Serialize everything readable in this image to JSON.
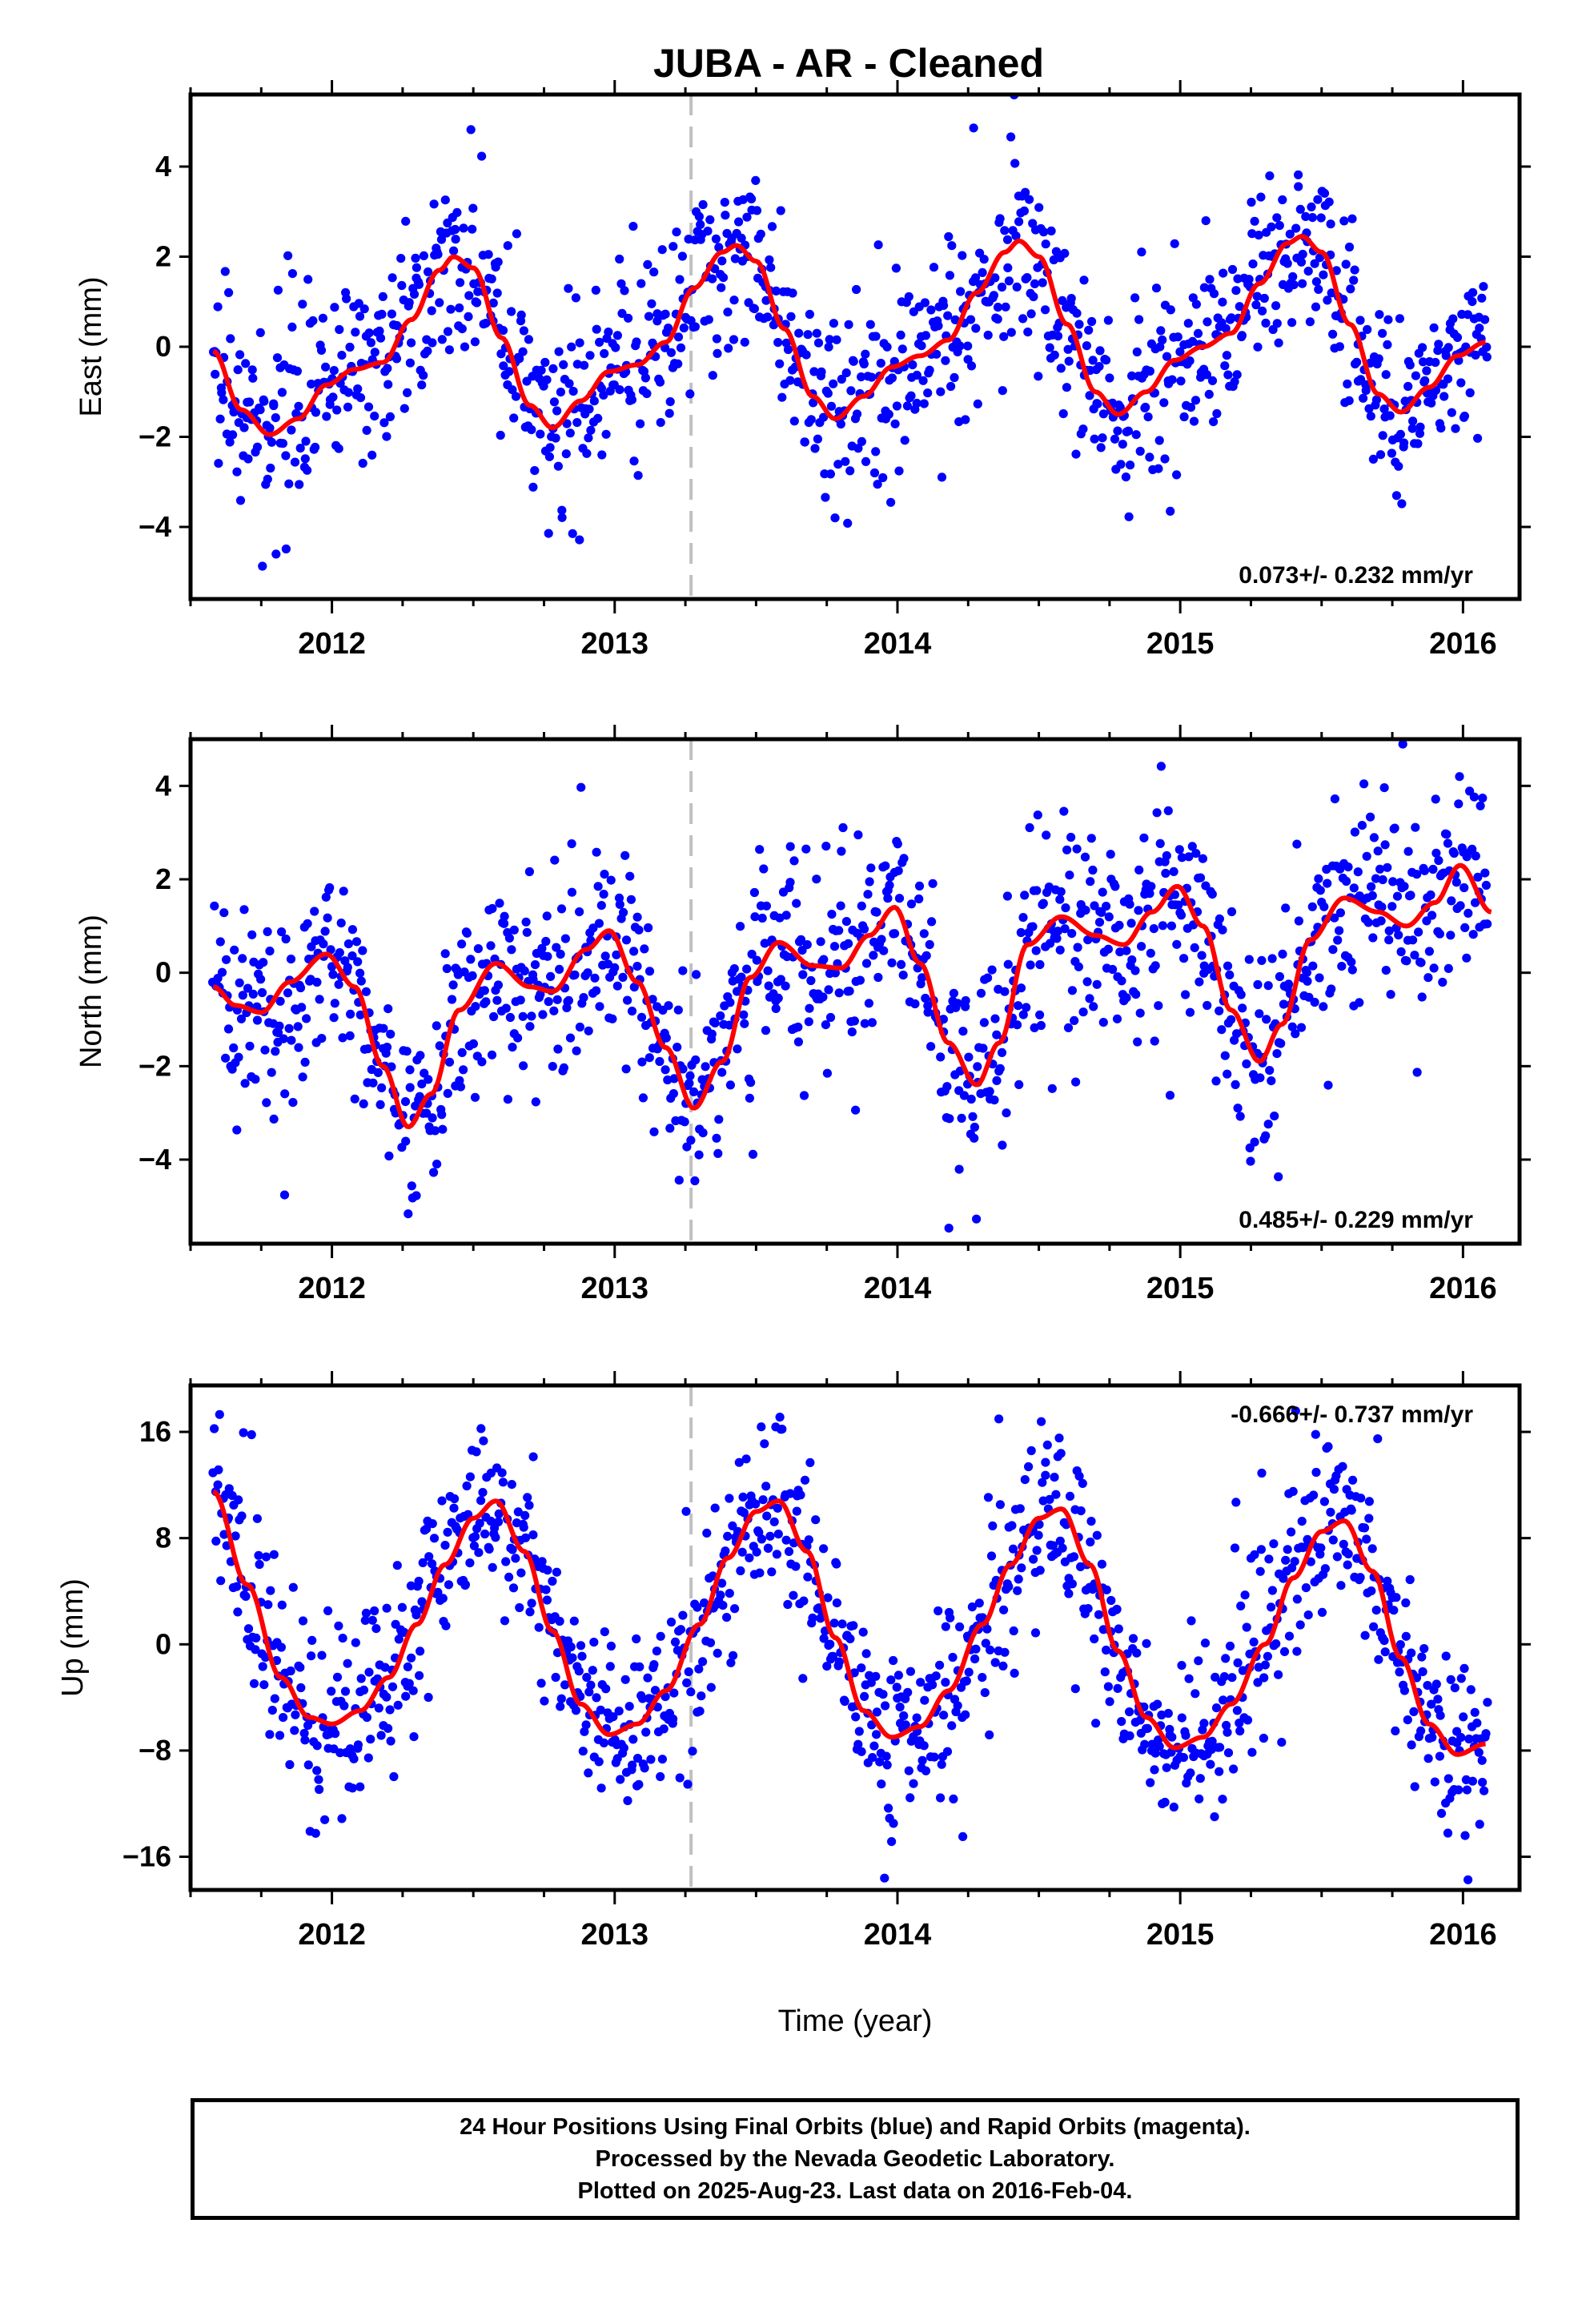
{
  "title": "JUBA  - AR - Cleaned",
  "xlabel": "Time (year)",
  "footer": {
    "line1": "24 Hour Positions Using Final Orbits (blue) and Rapid Orbits (magenta).",
    "line2": "Processed by the Nevada Geodetic Laboratory.",
    "line3": "Plotted on 2025-Aug-23. Last data on 2016-Feb-04."
  },
  "colors": {
    "points": "#0000ff",
    "model": "#ff0000",
    "marker_line": "#c0c0c0"
  },
  "chart_data": [
    {
      "type": "scatter",
      "ylabel": "East (mm)",
      "rate": "0.073+/- 0.232 mm/yr",
      "xlim": [
        2011.5,
        2016.2
      ],
      "ylim": [
        -5.6,
        5.6
      ],
      "yticks": [
        -4,
        -2,
        0,
        2,
        4
      ],
      "xticks": [
        2012,
        2013,
        2014,
        2015,
        2016
      ],
      "marker_x": 2013.27,
      "model": {
        "x": [
          2011.58,
          2011.68,
          2011.78,
          2011.88,
          2011.98,
          2012.08,
          2012.18,
          2012.28,
          2012.38,
          2012.43,
          2012.5,
          2012.6,
          2012.7,
          2012.78,
          2012.88,
          2012.98,
          2013.08,
          2013.18,
          2013.28,
          2013.38,
          2013.43,
          2013.5,
          2013.6,
          2013.7,
          2013.78,
          2013.88,
          2013.98,
          2014.08,
          2014.18,
          2014.28,
          2014.38,
          2014.43,
          2014.5,
          2014.6,
          2014.7,
          2014.78,
          2014.88,
          2014.98,
          2015.08,
          2015.18,
          2015.28,
          2015.38,
          2015.43,
          2015.5,
          2015.6,
          2015.7,
          2015.78,
          2015.88,
          2015.98,
          2016.08
        ],
        "y": [
          -0.1,
          -1.4,
          -1.95,
          -1.6,
          -0.85,
          -0.5,
          -0.35,
          0.6,
          1.7,
          2.0,
          1.75,
          0.2,
          -1.3,
          -1.8,
          -1.2,
          -0.55,
          -0.4,
          0.1,
          1.3,
          2.1,
          2.25,
          1.9,
          0.4,
          -1.1,
          -1.6,
          -1.1,
          -0.45,
          -0.2,
          0.15,
          1.2,
          2.1,
          2.35,
          2.0,
          0.5,
          -1.0,
          -1.5,
          -1.0,
          -0.3,
          0.0,
          0.3,
          1.4,
          2.3,
          2.45,
          2.1,
          0.5,
          -1.05,
          -1.45,
          -0.9,
          -0.2,
          0.1
        ]
      }
    },
    {
      "type": "scatter",
      "ylabel": "North (mm)",
      "rate": "0.485+/- 0.229 mm/yr",
      "xlim": [
        2011.5,
        2016.2
      ],
      "ylim": [
        -5.8,
        5.0
      ],
      "yticks": [
        -4,
        -2,
        0,
        2,
        4
      ],
      "xticks": [
        2012,
        2013,
        2014,
        2015,
        2016
      ],
      "marker_x": 2013.27,
      "model": {
        "x": [
          2011.58,
          2011.66,
          2011.75,
          2011.85,
          2011.98,
          2012.08,
          2012.18,
          2012.27,
          2012.35,
          2012.45,
          2012.58,
          2012.7,
          2012.78,
          2012.9,
          2012.98,
          2013.08,
          2013.18,
          2013.28,
          2013.38,
          2013.48,
          2013.58,
          2013.7,
          2013.8,
          2013.9,
          2013.99,
          2014.08,
          2014.18,
          2014.28,
          2014.36,
          2014.46,
          2014.58,
          2014.7,
          2014.8,
          2014.9,
          2014.99,
          2015.08,
          2015.18,
          2015.28,
          2015.36,
          2015.46,
          2015.58,
          2015.7,
          2015.8,
          2015.9,
          2015.99,
          2016.1
        ],
        "y": [
          -0.3,
          -0.7,
          -0.85,
          -0.2,
          0.4,
          -0.3,
          -2.0,
          -3.3,
          -2.6,
          -0.8,
          0.2,
          -0.3,
          -0.4,
          0.5,
          0.9,
          -0.2,
          -1.6,
          -2.9,
          -1.9,
          -0.1,
          0.65,
          0.15,
          0.1,
          0.8,
          1.4,
          0.2,
          -1.5,
          -2.4,
          -1.5,
          0.6,
          1.2,
          0.8,
          0.6,
          1.3,
          1.85,
          1.0,
          -0.8,
          -1.9,
          -1.1,
          0.7,
          1.6,
          1.3,
          1.0,
          1.5,
          2.3,
          1.3
        ]
      }
    },
    {
      "type": "scatter",
      "ylabel": "Up (mm)",
      "rate": "-0.666+/- 0.737 mm/yr",
      "xlim": [
        2011.5,
        2016.2
      ],
      "ylim": [
        -18.5,
        19.5
      ],
      "yticks": [
        -16,
        -8,
        0,
        8,
        16
      ],
      "xticks": [
        2012,
        2013,
        2014,
        2015,
        2016
      ],
      "marker_x": 2013.27,
      "model": {
        "x": [
          2011.58,
          2011.7,
          2011.82,
          2011.92,
          2012.0,
          2012.1,
          2012.2,
          2012.3,
          2012.4,
          2012.5,
          2012.58,
          2012.68,
          2012.78,
          2012.88,
          2012.98,
          2013.08,
          2013.18,
          2013.3,
          2013.4,
          2013.5,
          2013.58,
          2013.68,
          2013.78,
          2013.88,
          2013.98,
          2014.08,
          2014.18,
          2014.3,
          2014.4,
          2014.5,
          2014.58,
          2014.68,
          2014.78,
          2014.88,
          2014.98,
          2015.08,
          2015.18,
          2015.3,
          2015.4,
          2015.5,
          2015.58,
          2015.68,
          2015.78,
          2015.88,
          2015.98,
          2016.08
        ],
        "y": [
          11.5,
          4.5,
          -2.5,
          -5.5,
          -6.0,
          -5.0,
          -2.5,
          1.5,
          6.0,
          9.5,
          10.8,
          7.0,
          1.0,
          -4.5,
          -6.8,
          -6.0,
          -3.5,
          1.5,
          6.5,
          10.0,
          10.8,
          7.0,
          0.5,
          -5.0,
          -7.0,
          -6.2,
          -3.5,
          1.5,
          6.0,
          9.5,
          10.2,
          6.0,
          -0.5,
          -5.5,
          -7.8,
          -7.0,
          -4.5,
          0.0,
          5.0,
          8.5,
          9.3,
          5.5,
          -1.0,
          -6.0,
          -8.3,
          -7.5
        ]
      }
    }
  ]
}
